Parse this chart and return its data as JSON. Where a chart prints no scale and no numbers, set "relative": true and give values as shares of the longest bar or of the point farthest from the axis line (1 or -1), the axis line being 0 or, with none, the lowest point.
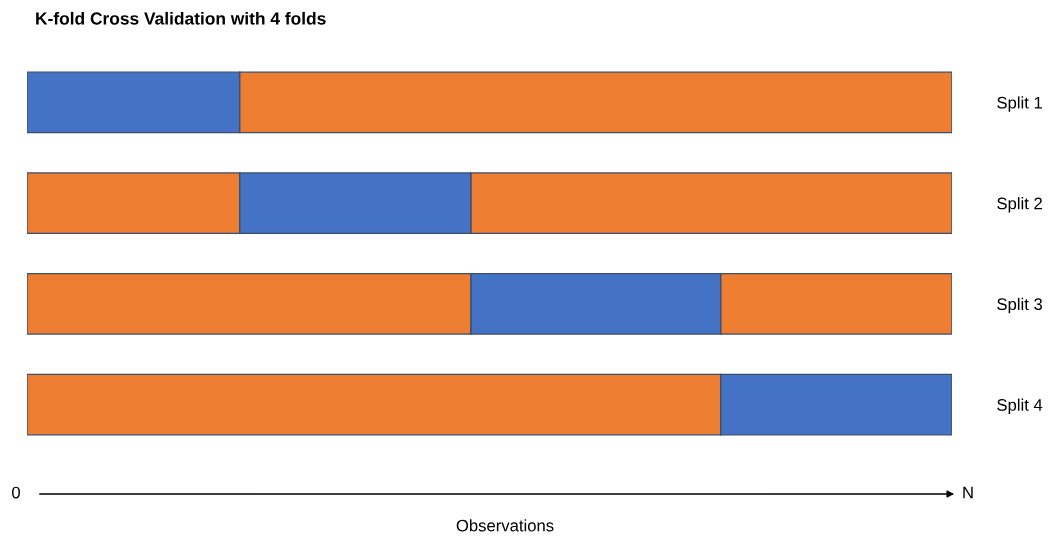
{
  "chart_data": {
    "type": "bar",
    "orientation": "horizontal",
    "stacked": true,
    "relative": true,
    "title": "K-fold Cross Validation with 4 folds",
    "xlabel": "Observations",
    "categories": [
      "Split 1",
      "Split 2",
      "Split 3",
      "Split 4"
    ],
    "series": [
      {
        "colors": [
          "#4472c4",
          "#ed7d31",
          "#ed7d31",
          "#ed7d31"
        ],
        "values": [
          0.23,
          0.23,
          0.48,
          0.75
        ]
      },
      {
        "colors": [
          "#ed7d31",
          "#4472c4",
          "#4472c4",
          "#4472c4"
        ],
        "values": [
          0.77,
          0.25,
          0.27,
          0.25
        ]
      },
      {
        "colors": [
          "#ed7d31",
          "#ed7d31",
          "#ed7d31",
          "#ed7d31"
        ],
        "values": [
          null,
          0.52,
          0.25,
          null
        ]
      }
    ],
    "annotations": [
      "0",
      "N"
    ],
    "grid": false,
    "legend": false
  }
}
